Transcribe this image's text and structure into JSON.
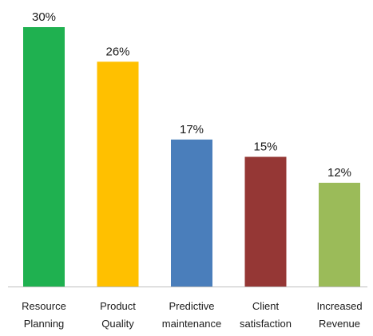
{
  "chart_data": {
    "type": "bar",
    "categories": [
      [
        "Resource",
        "Planning"
      ],
      [
        "Product",
        "Quality"
      ],
      [
        "Predictive",
        "maintenance"
      ],
      [
        "Client",
        "satisfaction"
      ],
      [
        "Increased",
        "Revenue"
      ]
    ],
    "values": [
      30,
      26,
      17,
      15,
      12
    ],
    "value_labels": [
      "30%",
      "26%",
      "17%",
      "15%",
      "12%"
    ],
    "colors": [
      "#1fb150",
      "#ffc000",
      "#4a7ebb",
      "#953735",
      "#9bbb59"
    ],
    "ylim": [
      0,
      30
    ],
    "grid": false,
    "legend": "none"
  }
}
